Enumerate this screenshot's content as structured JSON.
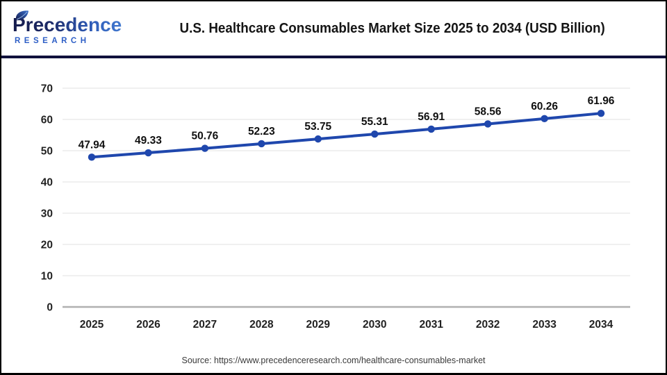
{
  "header": {
    "logo": {
      "name": "Precedence",
      "subname": "RESEARCH"
    },
    "title": "U.S. Healthcare Consumables Market Size 2025 to 2034 (USD Billion)"
  },
  "chart_data": {
    "type": "line",
    "title": "U.S. Healthcare Consumables Market Size 2025 to 2034 (USD Billion)",
    "categories": [
      "2025",
      "2026",
      "2027",
      "2028",
      "2029",
      "2030",
      "2031",
      "2032",
      "2033",
      "2034"
    ],
    "values": [
      47.94,
      49.33,
      50.76,
      52.23,
      53.75,
      55.31,
      56.91,
      58.56,
      60.26,
      61.96
    ],
    "xlabel": "",
    "ylabel": "",
    "ylim": [
      0,
      70
    ],
    "yticks": [
      0,
      10,
      20,
      30,
      40,
      50,
      60,
      70
    ],
    "grid": true,
    "legend": "none",
    "line_color": "#1f47ad",
    "marker_color": "#1f47ad",
    "grid_color": "#e7e7e7",
    "axis_line_color": "#b0b0b0",
    "data_label_color": "#101010"
  },
  "footer": {
    "source": "Source: https://www.precedenceresearch.com/healthcare-consumables-market"
  },
  "colors": {
    "header_divider": "#10113c",
    "logo_dark": "#151b4c",
    "logo_light": "#4a85d8",
    "research_blue": "#2d5ec6"
  }
}
